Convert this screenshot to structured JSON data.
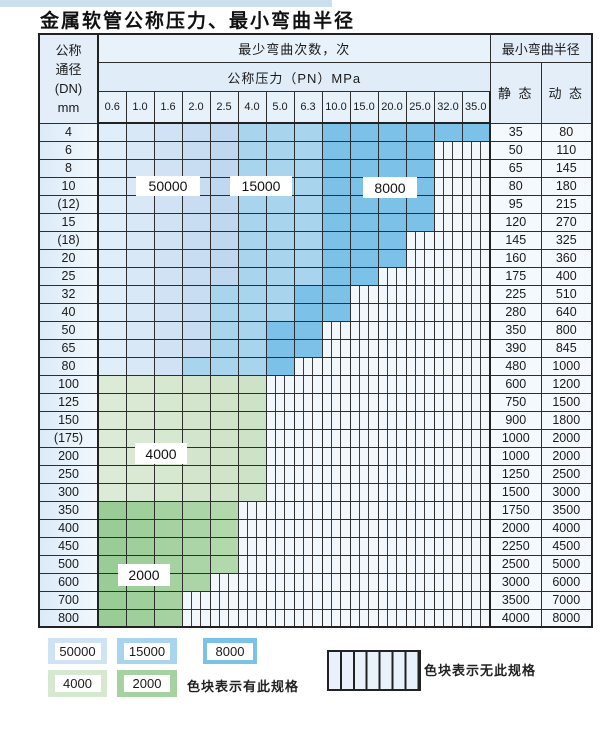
{
  "title": "金属软管公称压力、最小弯曲半径",
  "table": {
    "corner_lines": [
      "公称",
      "通径",
      "(DN)",
      "mm"
    ],
    "span_top": "最少弯曲次数，次",
    "span_pressure": "公称压力（PN）MPa",
    "span_radius": "最小弯曲半径",
    "static_label": "静 态",
    "dynamic_label": "动 态",
    "pressures": [
      "0.6",
      "1.0",
      "1.6",
      "2.0",
      "2.5",
      "4.0",
      "5.0",
      "6.3",
      "10.0",
      "15.0",
      "20.0",
      "25.0",
      "32.0",
      "35.0"
    ],
    "rows": [
      {
        "dn": "4",
        "static": "35",
        "dynamic": "80",
        "pattern": "aaaaabbbcccccc"
      },
      {
        "dn": "6",
        "static": "50",
        "dynamic": "110",
        "pattern": "aaaaabbbccccxx"
      },
      {
        "dn": "8",
        "static": "65",
        "dynamic": "145",
        "pattern": "aaaaabbbccccxx"
      },
      {
        "dn": "10",
        "static": "80",
        "dynamic": "180",
        "pattern": "aaaaabbbccccxx"
      },
      {
        "dn": "(12)",
        "static": "95",
        "dynamic": "215",
        "pattern": "aaaaabbbccccxx"
      },
      {
        "dn": "15",
        "static": "120",
        "dynamic": "270",
        "pattern": "aaaaabbbccccxx"
      },
      {
        "dn": "(18)",
        "static": "145",
        "dynamic": "325",
        "pattern": "aaaaabbbcccxxx"
      },
      {
        "dn": "20",
        "static": "160",
        "dynamic": "360",
        "pattern": "aaaaabbbcccxxx"
      },
      {
        "dn": "25",
        "static": "175",
        "dynamic": "400",
        "pattern": "aaaaabbbccxxxx"
      },
      {
        "dn": "32",
        "static": "225",
        "dynamic": "510",
        "pattern": "aaaabbbccxxxxx"
      },
      {
        "dn": "40",
        "static": "280",
        "dynamic": "640",
        "pattern": "aaaabbbccxxxxx"
      },
      {
        "dn": "50",
        "static": "350",
        "dynamic": "800",
        "pattern": "aaaabbccxxxxxx"
      },
      {
        "dn": "65",
        "static": "390",
        "dynamic": "845",
        "pattern": "aaaabbccxxxxxx"
      },
      {
        "dn": "80",
        "static": "480",
        "dynamic": "1000",
        "pattern": "aaabbbcxxxxxxx"
      },
      {
        "dn": "100",
        "static": "600",
        "dynamic": "1200",
        "pattern": "ggggggxxxxxxxx"
      },
      {
        "dn": "125",
        "static": "750",
        "dynamic": "1500",
        "pattern": "ggggggxxxxxxxx"
      },
      {
        "dn": "150",
        "static": "900",
        "dynamic": "1800",
        "pattern": "ggggggxxxxxxxx"
      },
      {
        "dn": "(175)",
        "static": "1000",
        "dynamic": "2000",
        "pattern": "ggggggxxxxxxxx"
      },
      {
        "dn": "200",
        "static": "1000",
        "dynamic": "2000",
        "pattern": "ggggggxxxxxxxx"
      },
      {
        "dn": "250",
        "static": "1250",
        "dynamic": "2500",
        "pattern": "ggggggxxxxxxxx"
      },
      {
        "dn": "300",
        "static": "1500",
        "dynamic": "3000",
        "pattern": "ggggggxxxxxxxx"
      },
      {
        "dn": "350",
        "static": "1750",
        "dynamic": "3500",
        "pattern": "hhhhhxxxxxxxxx"
      },
      {
        "dn": "400",
        "static": "2000",
        "dynamic": "4000",
        "pattern": "hhhhhxxxxxxxxx"
      },
      {
        "dn": "450",
        "static": "2250",
        "dynamic": "4500",
        "pattern": "hhhhhxxxxxxxxx"
      },
      {
        "dn": "500",
        "static": "2500",
        "dynamic": "5000",
        "pattern": "hhhhhxxxxxxxxx"
      },
      {
        "dn": "600",
        "static": "3000",
        "dynamic": "6000",
        "pattern": "hhhhxxxxxxxxxx"
      },
      {
        "dn": "700",
        "static": "3500",
        "dynamic": "7000",
        "pattern": "hhhxxxxxxxxxxx"
      },
      {
        "dn": "800",
        "static": "4000",
        "dynamic": "8000",
        "pattern": "hhhxxxxxxxxxxx"
      }
    ]
  },
  "zones": {
    "a": {
      "cycles": "50000",
      "color": "#cfe3f4"
    },
    "b": {
      "cycles": "15000",
      "color": "#a9d4ee"
    },
    "c": {
      "cycles": "8000",
      "color": "#7cc2e8"
    },
    "g": {
      "cycles": "4000",
      "color": "#d6e8d0"
    },
    "h": {
      "cycles": "2000",
      "color": "#a5d2a0"
    },
    "x": {
      "cycles": "",
      "color": "hatched"
    }
  },
  "overlay_labels": [
    {
      "text": "50000"
    },
    {
      "text": "15000"
    },
    {
      "text": "8000"
    },
    {
      "text": "4000"
    },
    {
      "text": "2000"
    }
  ],
  "legend": {
    "swatches": [
      {
        "value": "50000"
      },
      {
        "value": "15000"
      },
      {
        "value": "8000"
      },
      {
        "value": "4000"
      },
      {
        "value": "2000"
      }
    ],
    "available_label": "色块表示有此规格",
    "unavailable_label": "色块表示无此规格"
  }
}
